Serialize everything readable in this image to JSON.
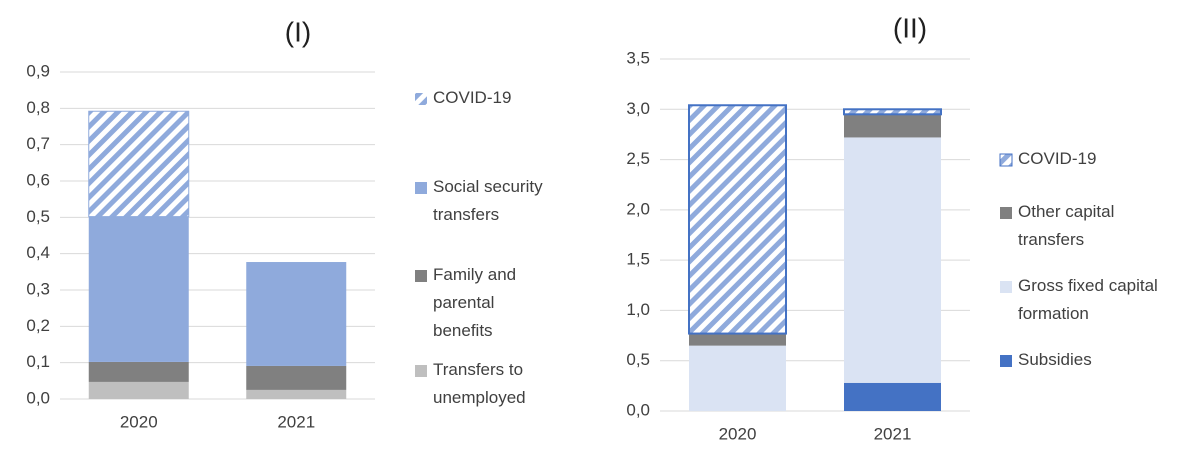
{
  "chart_data": [
    {
      "type": "bar",
      "stacked": true,
      "title": "(I)",
      "categories": [
        "2020",
        "2021"
      ],
      "series": [
        {
          "name": "Transfers to unemployed",
          "color": "#bfbfbf",
          "values": [
            0.047,
            0.025
          ]
        },
        {
          "name": "Family and parental benefits",
          "color": "#808080",
          "values": [
            0.055,
            0.066
          ]
        },
        {
          "name": "Social security transfers",
          "color": "#8faadc",
          "values": [
            0.4,
            0.286
          ]
        },
        {
          "name": "COVID-19",
          "color": "#8faadc",
          "pattern": "hatch",
          "values": [
            0.29,
            0
          ]
        }
      ],
      "ylim": [
        0,
        0.9
      ],
      "yticks": [
        {
          "value": 0,
          "label": "0,0"
        },
        {
          "value": 0.1,
          "label": "0,1"
        },
        {
          "value": 0.2,
          "label": "0,2"
        },
        {
          "value": 0.3,
          "label": "0,3"
        },
        {
          "value": 0.4,
          "label": "0,4"
        },
        {
          "value": 0.5,
          "label": "0,5"
        },
        {
          "value": 0.6,
          "label": "0,6"
        },
        {
          "value": 0.7,
          "label": "0,7"
        },
        {
          "value": 0.8,
          "label": "0,8"
        },
        {
          "value": 0.9,
          "label": "0,9"
        }
      ],
      "grid": true
    },
    {
      "type": "bar",
      "stacked": true,
      "title": "(II)",
      "categories": [
        "2020",
        "2021"
      ],
      "series": [
        {
          "name": "Subsidies",
          "color": "#4472c4",
          "values": [
            0,
            0.28
          ]
        },
        {
          "name": "Gross fixed capital formation",
          "color": "#dae3f3",
          "values": [
            0.65,
            2.44
          ]
        },
        {
          "name": "Other capital transfers",
          "color": "#808080",
          "values": [
            0.12,
            0.23
          ]
        },
        {
          "name": "COVID-19",
          "color": "#4472c4",
          "pattern": "hatch",
          "values": [
            2.27,
            0.05
          ]
        }
      ],
      "ylim": [
        0,
        3.5
      ],
      "yticks": [
        {
          "value": 0,
          "label": "0,0"
        },
        {
          "value": 0.5,
          "label": "0,5"
        },
        {
          "value": 1,
          "label": "1,0"
        },
        {
          "value": 1.5,
          "label": "1,5"
        },
        {
          "value": 2,
          "label": "2,0"
        },
        {
          "value": 2.5,
          "label": "2,5"
        },
        {
          "value": 3,
          "label": "3,0"
        },
        {
          "value": 3.5,
          "label": "3,5"
        }
      ],
      "grid": true
    }
  ]
}
